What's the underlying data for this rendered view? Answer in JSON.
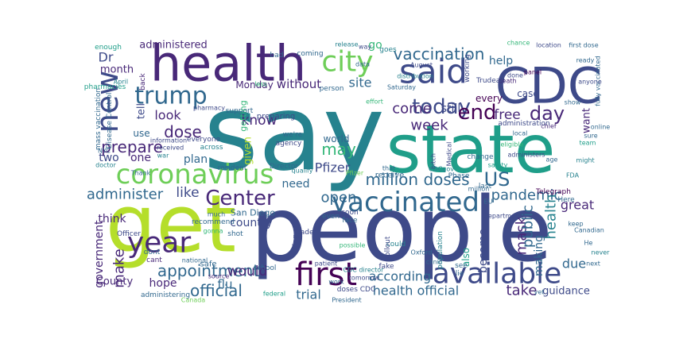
{
  "words": [
    "say",
    "people",
    "state",
    "get",
    "health",
    "CDC",
    "coronavirus",
    "said",
    "city",
    "vaccinated",
    "available",
    "first",
    "year",
    "trump",
    "new",
    "Center",
    "today",
    "end",
    "US",
    "million doses",
    "vaccination",
    "appointment",
    "official",
    "health official",
    "prepare",
    "dose",
    "administer",
    "like",
    "Dr",
    "month",
    "administered",
    "look",
    "pandemic",
    "mask",
    "public",
    "health",
    "open",
    "Pfizer",
    "may",
    "week",
    "come",
    "still",
    "know",
    "free",
    "day",
    "make",
    "would",
    "County",
    "hope",
    "two",
    "one",
    "plan",
    "use",
    "think",
    "need",
    "country",
    "according",
    "take",
    "guidance",
    "due",
    "great",
    "trial",
    "flu",
    "site",
    "go",
    "Monday",
    "without",
    "world",
    "government",
    "become",
    "also",
    "making",
    "every",
    "case",
    "help",
    "want",
    "tell",
    "given",
    "enough",
    "pharmacies",
    "April",
    "back",
    "mass vaccination",
    "Disease Control",
    "NYC",
    "doctor",
    "Thank",
    "war",
    "received",
    "information",
    "everyone",
    "across",
    "pharmacy",
    "support",
    "preparing",
    "getting",
    "we're",
    "agency",
    "Director",
    "resident",
    "San Diego",
    "much",
    "recommend",
    "gonna",
    "Officer",
    "dont",
    "cant",
    "national",
    "safe",
    "school",
    "source",
    "leader",
    "even",
    "soon",
    "face",
    "thing",
    "shot",
    "bad",
    "coming",
    "release",
    "data",
    "way",
    "person",
    "distribution",
    "Saturday",
    "effort",
    "August",
    "working",
    "death",
    "done",
    "panel",
    "Trudeau",
    "chance",
    "location",
    "first dose",
    "ready",
    "fully vaccinated",
    "anyone",
    "online",
    "show",
    "sure",
    "chief",
    "administration",
    "local",
    "eligible",
    "team",
    "might",
    "age",
    "FDA",
    "Telegraph",
    "Here",
    "keep",
    "Department",
    "Canadian",
    "He",
    "never",
    "next",
    "yet",
    "Oxford",
    "population",
    "clinic",
    "see",
    "lie",
    "could",
    "rollout",
    "fake",
    "CDC director",
    "tomorrow",
    "President",
    "doses CDC",
    "federal",
    "patient",
    "work",
    "possible",
    "receive",
    "that",
    "Medical",
    "change",
    "CDCgov",
    "Phase",
    "safety",
    "EU",
    "last",
    "administers",
    "million",
    "bitch",
    "administering",
    "Canada",
    "goes",
    "less",
    "qualify",
    "Pfizer"
  ]
}
